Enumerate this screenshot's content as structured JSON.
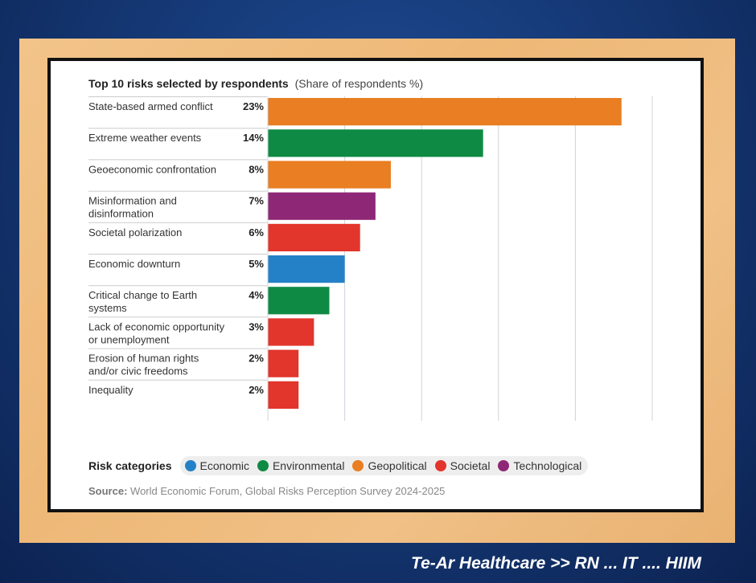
{
  "colors": {
    "Economic": "#2481c8",
    "Environmental": "#0f8a44",
    "Geopolitical": "#e97e22",
    "Societal": "#e2352c",
    "Technological": "#8e2775"
  },
  "header": {
    "title": "Top 10 risks selected by respondents",
    "subtitle": "(Share of respondents %)"
  },
  "legend": {
    "title": "Risk categories",
    "items": [
      "Economic",
      "Environmental",
      "Geopolitical",
      "Societal",
      "Technological"
    ]
  },
  "source": {
    "label": "Source:",
    "text": "World Economic Forum, Global Risks Perception Survey 2024-2025"
  },
  "brand": "Te-Ar Healthcare  >>  RN ... IT .... HIIM",
  "chart_data": {
    "type": "bar",
    "orientation": "horizontal",
    "title": "Top 10 risks selected by respondents",
    "subtitle": "(Share of respondents %)",
    "categories": [
      [
        "State-based armed conflict"
      ],
      [
        "Extreme weather events"
      ],
      [
        "Geoeconomic confrontation"
      ],
      [
        "Misinformation and",
        "disinformation"
      ],
      [
        "Societal polarization"
      ],
      [
        "Economic downturn"
      ],
      [
        "Critical change to Earth",
        "systems"
      ],
      [
        "Lack of economic opportunity",
        "or unemployment"
      ],
      [
        "Erosion of human rights",
        "and/or civic freedoms"
      ],
      [
        "Inequality"
      ]
    ],
    "values": [
      23,
      14,
      8,
      7,
      6,
      5,
      4,
      3,
      2,
      2
    ],
    "value_labels": [
      "23%",
      "14%",
      "8%",
      "7%",
      "6%",
      "5%",
      "4%",
      "3%",
      "2%",
      "2%"
    ],
    "risk_category": [
      "Geopolitical",
      "Environmental",
      "Geopolitical",
      "Technological",
      "Societal",
      "Economic",
      "Environmental",
      "Societal",
      "Societal",
      "Societal"
    ],
    "xlim": [
      0,
      25
    ],
    "gridlines": [
      5,
      10,
      15,
      20,
      25
    ],
    "grid": true,
    "legend_position": "bottom-left"
  }
}
